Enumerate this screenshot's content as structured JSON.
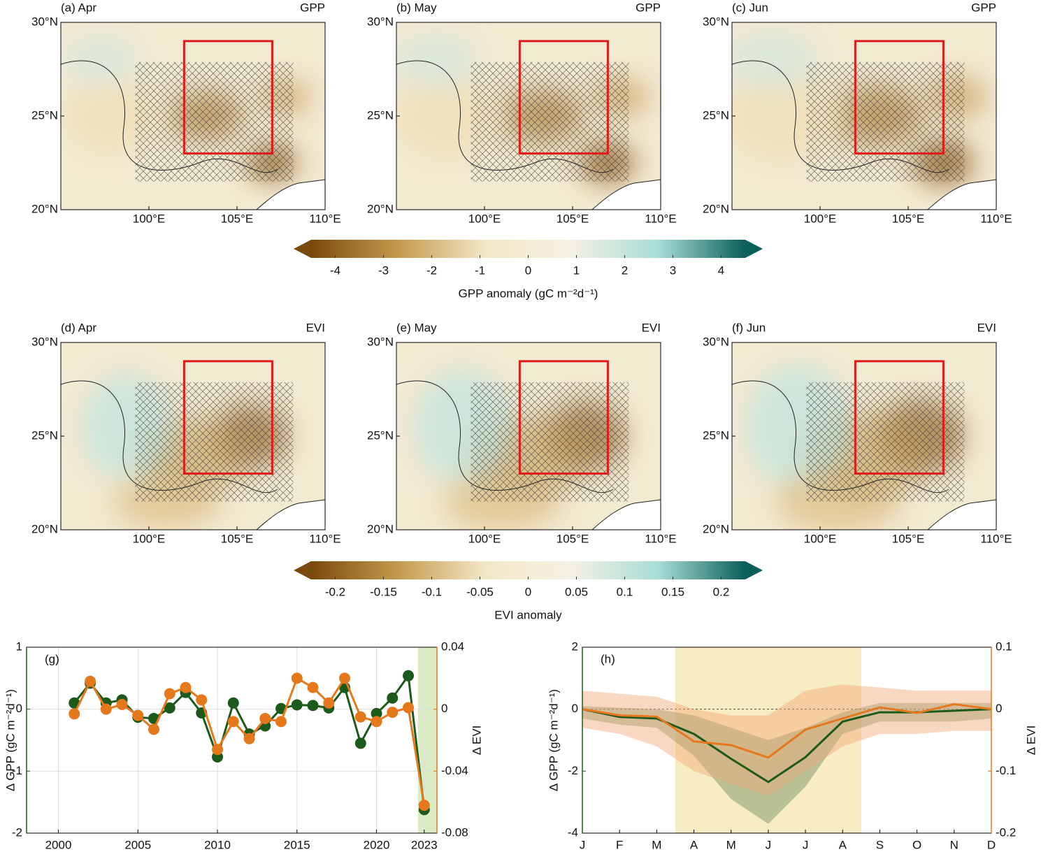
{
  "chart_data": [
    {
      "type": "map",
      "title": "(a) Apr",
      "variable": "GPP",
      "xlim": [
        95,
        110
      ],
      "ylim": [
        20,
        30
      ],
      "xticks": [
        {
          "value": 100,
          "label": "100°E"
        },
        {
          "value": 105,
          "label": "105°E"
        },
        {
          "value": 110,
          "label": "110°E"
        }
      ],
      "yticks": [
        {
          "value": 20,
          "label": "20°N"
        },
        {
          "value": 25,
          "label": "25°N"
        },
        {
          "value": 30,
          "label": "30°N"
        }
      ],
      "region": {
        "lon": [
          102,
          107
        ],
        "lat": [
          23,
          29
        ],
        "color": "#e01b1b"
      }
    },
    {
      "type": "map",
      "title": "(b) May",
      "variable": "GPP",
      "xlim": [
        95,
        110
      ],
      "ylim": [
        20,
        30
      ],
      "xticks": [
        {
          "value": 100,
          "label": "100°E"
        },
        {
          "value": 105,
          "label": "105°E"
        },
        {
          "value": 110,
          "label": "110°E"
        }
      ],
      "yticks": [
        {
          "value": 20,
          "label": "20°N"
        },
        {
          "value": 25,
          "label": "25°N"
        },
        {
          "value": 30,
          "label": "30°N"
        }
      ],
      "region": {
        "lon": [
          102,
          107
        ],
        "lat": [
          23,
          29
        ],
        "color": "#e01b1b"
      }
    },
    {
      "type": "map",
      "title": "(c) Jun",
      "variable": "GPP",
      "xlim": [
        95,
        110
      ],
      "ylim": [
        20,
        30
      ],
      "xticks": [
        {
          "value": 100,
          "label": "100°E"
        },
        {
          "value": 105,
          "label": "105°E"
        },
        {
          "value": 110,
          "label": "110°E"
        }
      ],
      "yticks": [
        {
          "value": 20,
          "label": "20°N"
        },
        {
          "value": 25,
          "label": "25°N"
        },
        {
          "value": 30,
          "label": "30°N"
        }
      ],
      "region": {
        "lon": [
          102,
          107
        ],
        "lat": [
          23,
          29
        ],
        "color": "#e01b1b"
      }
    },
    {
      "type": "colorbar",
      "label": "GPP anomaly (gC m⁻²d⁻¹)",
      "lim": [
        -4.5,
        4.5
      ],
      "ticks": [
        -4,
        -3,
        -2,
        -1,
        0,
        1,
        2,
        3,
        4
      ],
      "colors": [
        "#7a4a0c",
        "#c59a4e",
        "#f3e7c6",
        "#f4f1e4",
        "#a8dcd6",
        "#0b5f5a"
      ]
    },
    {
      "type": "map",
      "title": "(d) Apr",
      "variable": "EVI",
      "xlim": [
        95,
        110
      ],
      "ylim": [
        20,
        30
      ],
      "xticks": [
        {
          "value": 100,
          "label": "100°E"
        },
        {
          "value": 105,
          "label": "105°E"
        },
        {
          "value": 110,
          "label": "110°E"
        }
      ],
      "yticks": [
        {
          "value": 20,
          "label": "20°N"
        },
        {
          "value": 25,
          "label": "25°N"
        },
        {
          "value": 30,
          "label": "30°N"
        }
      ],
      "region": {
        "lon": [
          102,
          107
        ],
        "lat": [
          23,
          29
        ],
        "color": "#e01b1b"
      }
    },
    {
      "type": "map",
      "title": "(e) May",
      "variable": "EVI",
      "xlim": [
        95,
        110
      ],
      "ylim": [
        20,
        30
      ],
      "xticks": [
        {
          "value": 100,
          "label": "100°E"
        },
        {
          "value": 105,
          "label": "105°E"
        },
        {
          "value": 110,
          "label": "110°E"
        }
      ],
      "yticks": [
        {
          "value": 20,
          "label": "20°N"
        },
        {
          "value": 25,
          "label": "25°N"
        },
        {
          "value": 30,
          "label": "30°N"
        }
      ],
      "region": {
        "lon": [
          102,
          107
        ],
        "lat": [
          23,
          29
        ],
        "color": "#e01b1b"
      }
    },
    {
      "type": "map",
      "title": "(f) Jun",
      "variable": "EVI",
      "xlim": [
        95,
        110
      ],
      "ylim": [
        20,
        30
      ],
      "xticks": [
        {
          "value": 100,
          "label": "100°E"
        },
        {
          "value": 105,
          "label": "105°E"
        },
        {
          "value": 110,
          "label": "110°E"
        }
      ],
      "yticks": [
        {
          "value": 20,
          "label": "20°N"
        },
        {
          "value": 25,
          "label": "25°N"
        },
        {
          "value": 30,
          "label": "30°N"
        }
      ],
      "region": {
        "lon": [
          102,
          107
        ],
        "lat": [
          23,
          29
        ],
        "color": "#e01b1b"
      }
    },
    {
      "type": "colorbar",
      "label": "EVI anomaly",
      "lim": [
        -0.225,
        0.225
      ],
      "ticks": [
        -0.2,
        -0.15,
        -0.1,
        -0.05,
        0,
        0.05,
        0.1,
        0.15,
        0.2
      ],
      "colors": [
        "#7a4a0c",
        "#c59a4e",
        "#f3e7c6",
        "#f4f1e4",
        "#a8dcd6",
        "#0b5f5a"
      ]
    },
    {
      "type": "line",
      "title": "(g)",
      "ylabel": "Δ GPP (gC m⁻²d⁻¹)",
      "y2label": "Δ EVI",
      "grid": true,
      "markers": true,
      "x": [
        2001,
        2002,
        2003,
        2004,
        2005,
        2006,
        2007,
        2008,
        2009,
        2010,
        2011,
        2012,
        2013,
        2014,
        2015,
        2016,
        2017,
        2018,
        2019,
        2020,
        2021,
        2022,
        2023
      ],
      "xlim": [
        1998,
        2023.8
      ],
      "xticks": [
        2000,
        2005,
        2010,
        2015,
        2020,
        2023
      ],
      "ylim": [
        -2,
        1
      ],
      "yticks": [
        -2,
        -1,
        0,
        1
      ],
      "y2lim": [
        -0.08,
        0.04
      ],
      "y2ticks": [
        -0.08,
        -0.04,
        0,
        0.04
      ],
      "highlight": {
        "range": [
          2022.6,
          2023.8
        ],
        "color": "#d9ecc4"
      },
      "series": [
        {
          "color": "#1c5a1c",
          "axis": "y",
          "values": [
            0.1,
            0.42,
            0.1,
            0.15,
            -0.13,
            -0.15,
            0.02,
            0.27,
            -0.06,
            -0.77,
            0.1,
            -0.4,
            -0.27,
            0.01,
            0.07,
            0.06,
            0.02,
            0.35,
            -0.55,
            -0.07,
            0.18,
            0.54,
            -1.62
          ]
        },
        {
          "color": "#e6781c",
          "axis": "y2",
          "values": [
            -0.003,
            0.018,
            0.0,
            0.003,
            -0.004,
            -0.013,
            0.01,
            0.014,
            0.006,
            -0.026,
            -0.008,
            -0.019,
            -0.006,
            -0.008,
            0.02,
            0.014,
            0.004,
            0.02,
            -0.005,
            -0.008,
            -0.002,
            0.001,
            -0.062
          ]
        }
      ]
    },
    {
      "type": "band",
      "title": "(h)",
      "ylabel": "Δ GPP (gC m⁻²d⁻¹)",
      "y2label": "Δ EVI",
      "categories": [
        "J",
        "F",
        "M",
        "A",
        "M",
        "J",
        "J",
        "A",
        "S",
        "O",
        "N",
        "D"
      ],
      "ylim": [
        -4,
        2
      ],
      "yticks": [
        -4,
        -2,
        0,
        2
      ],
      "y2lim": [
        -0.2,
        0.1
      ],
      "y2ticks": [
        -0.2,
        -0.1,
        0,
        0.1
      ],
      "highlight": {
        "range": [
          2.5,
          7.5
        ],
        "color": "#f7ecc4"
      },
      "series": [
        {
          "color": "#1c5a1c",
          "band_color": "#6f8f5a",
          "axis": "y",
          "values": [
            0,
            -0.25,
            -0.3,
            -0.8,
            -1.6,
            -2.35,
            -1.55,
            -0.4,
            -0.1,
            -0.1,
            -0.05,
            0
          ],
          "lower": [
            -0.3,
            -0.5,
            -0.6,
            -1.5,
            -2.9,
            -3.7,
            -2.5,
            -0.8,
            -0.4,
            -0.4,
            -0.4,
            -0.3
          ],
          "upper": [
            0.1,
            0.05,
            0,
            -0.2,
            -0.6,
            -1.0,
            -0.6,
            -0.1,
            0.2,
            0.2,
            0.2,
            0.2
          ]
        },
        {
          "color": "#e6781c",
          "band_color": "#f2a878",
          "axis": "y2",
          "values": [
            0,
            -0.01,
            -0.012,
            -0.052,
            -0.058,
            -0.078,
            -0.033,
            -0.015,
            0.003,
            -0.006,
            0.008,
            0
          ],
          "lower": [
            -0.03,
            -0.04,
            -0.06,
            -0.1,
            -0.12,
            -0.14,
            -0.1,
            -0.06,
            -0.04,
            -0.04,
            -0.035,
            -0.035
          ],
          "upper": [
            0.03,
            0.025,
            0.02,
            0.0,
            -0.01,
            -0.01,
            0.03,
            0.04,
            0.035,
            0.03,
            0.03,
            0.03
          ]
        }
      ]
    }
  ]
}
